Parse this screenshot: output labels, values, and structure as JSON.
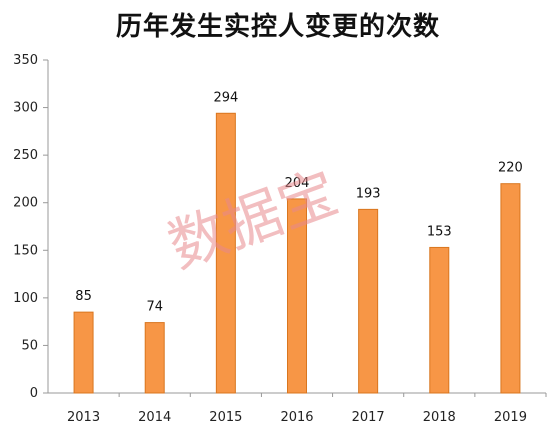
{
  "chart_data": {
    "type": "bar",
    "title": "历年发生实控人变更的次数",
    "categories": [
      "2013",
      "2014",
      "2015",
      "2016",
      "2017",
      "2018",
      "2019"
    ],
    "values": [
      85,
      74,
      294,
      204,
      193,
      153,
      220
    ],
    "ylim": [
      0,
      350
    ],
    "yticks": [
      0,
      50,
      100,
      150,
      200,
      250,
      300,
      350
    ],
    "grid": false,
    "legend": "none",
    "bar_color": "#f79646",
    "bar_edge_color": "#d9761f"
  },
  "watermark": "数据宝"
}
